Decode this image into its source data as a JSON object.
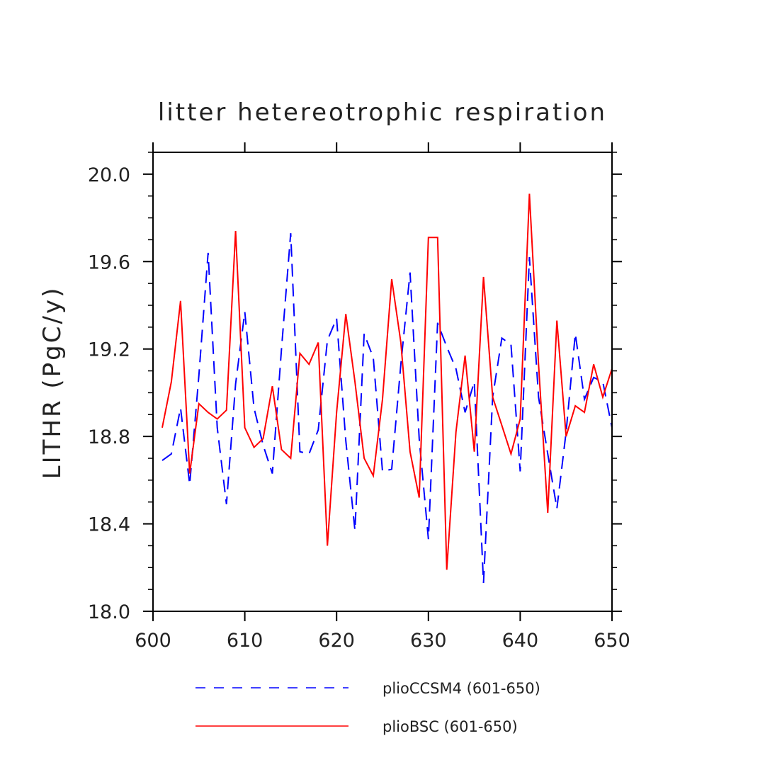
{
  "chart_data": {
    "type": "line",
    "title": "litter hetereotrophic respiration",
    "xlabel": "",
    "ylabel": "LITHR  (PgC/y)",
    "xlim": [
      600,
      650
    ],
    "ylim": [
      18.0,
      20.1
    ],
    "x_ticks": [
      600,
      610,
      620,
      630,
      640,
      650
    ],
    "x_tick_labels": [
      "600",
      "610",
      "620",
      "630",
      "640",
      "650"
    ],
    "y_ticks": [
      18.0,
      18.4,
      18.8,
      19.2,
      19.6,
      20.0
    ],
    "y_tick_labels": [
      "18.0",
      "18.4",
      "18.8",
      "19.2",
      "19.6",
      "20.0"
    ],
    "grid": false,
    "legend_position": "bottom",
    "x": [
      601,
      602,
      603,
      604,
      605,
      606,
      607,
      608,
      609,
      610,
      611,
      612,
      613,
      614,
      615,
      616,
      617,
      618,
      619,
      620,
      621,
      622,
      623,
      624,
      625,
      626,
      627,
      628,
      629,
      630,
      631,
      632,
      633,
      634,
      635,
      636,
      637,
      638,
      639,
      640,
      641,
      642,
      643,
      644,
      645,
      646,
      647,
      648,
      649,
      650
    ],
    "series": [
      {
        "name": "plioCCSM4 (601-650)",
        "color": "#0000ff",
        "style": "dashed",
        "values": [
          18.69,
          18.72,
          18.93,
          18.58,
          19.08,
          19.64,
          18.84,
          18.49,
          19.04,
          19.37,
          18.93,
          18.76,
          18.63,
          19.2,
          19.73,
          18.73,
          18.72,
          18.83,
          19.24,
          19.34,
          18.78,
          18.37,
          19.27,
          19.16,
          18.64,
          18.65,
          19.13,
          19.55,
          18.79,
          18.33,
          19.32,
          19.21,
          19.11,
          18.91,
          19.05,
          18.13,
          18.98,
          19.25,
          19.22,
          18.64,
          19.62,
          18.98,
          18.72,
          18.47,
          18.82,
          19.27,
          18.97,
          19.07,
          19.05,
          18.84
        ]
      },
      {
        "name": "plioBSC (601-650)",
        "color": "#ff0000",
        "style": "solid",
        "values": [
          18.84,
          19.05,
          19.42,
          18.63,
          18.95,
          18.91,
          18.88,
          18.92,
          19.74,
          18.84,
          18.75,
          18.79,
          19.03,
          18.74,
          18.7,
          19.18,
          19.13,
          19.23,
          18.3,
          18.91,
          19.36,
          19.05,
          18.7,
          18.62,
          18.97,
          19.52,
          19.23,
          18.73,
          18.52,
          19.71,
          19.71,
          18.19,
          18.82,
          19.17,
          18.73,
          19.53,
          18.98,
          18.85,
          18.72,
          18.88,
          19.91,
          19.13,
          18.45,
          19.33,
          18.8,
          18.94,
          18.91,
          19.13,
          18.98,
          19.11
        ]
      }
    ]
  }
}
